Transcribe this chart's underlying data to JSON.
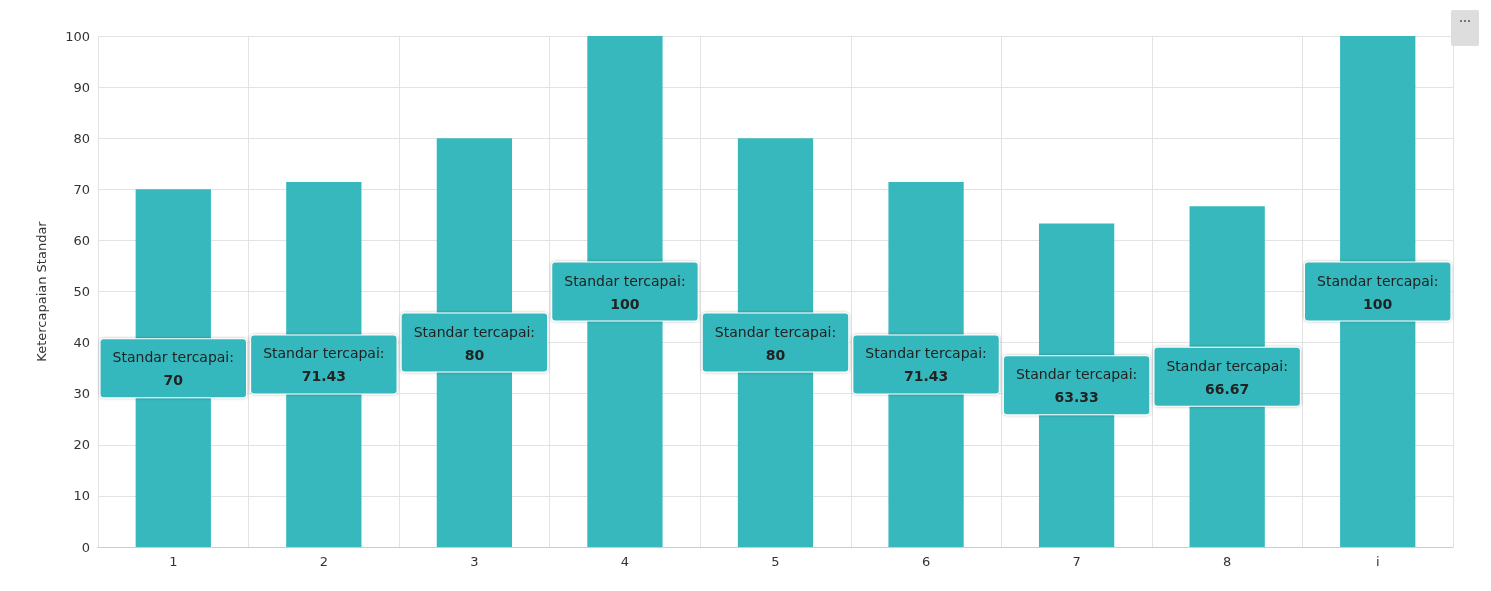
{
  "chart_data": {
    "type": "bar",
    "ylabel": "Ketercapaian Standar",
    "categories": [
      "1",
      "2",
      "3",
      "4",
      "5",
      "6",
      "7",
      "8",
      "i"
    ],
    "series": [
      {
        "name": "Standar tercapai:",
        "color": "#36b8bd",
        "values": [
          70,
          71.43,
          80,
          100,
          80,
          71.43,
          63.33,
          66.67,
          100
        ]
      }
    ],
    "ylim": [
      0,
      100
    ],
    "yticks": [
      0,
      10,
      20,
      30,
      40,
      50,
      60,
      70,
      80,
      90,
      100
    ],
    "grid": true,
    "data_labels": true,
    "legend": false
  }
}
